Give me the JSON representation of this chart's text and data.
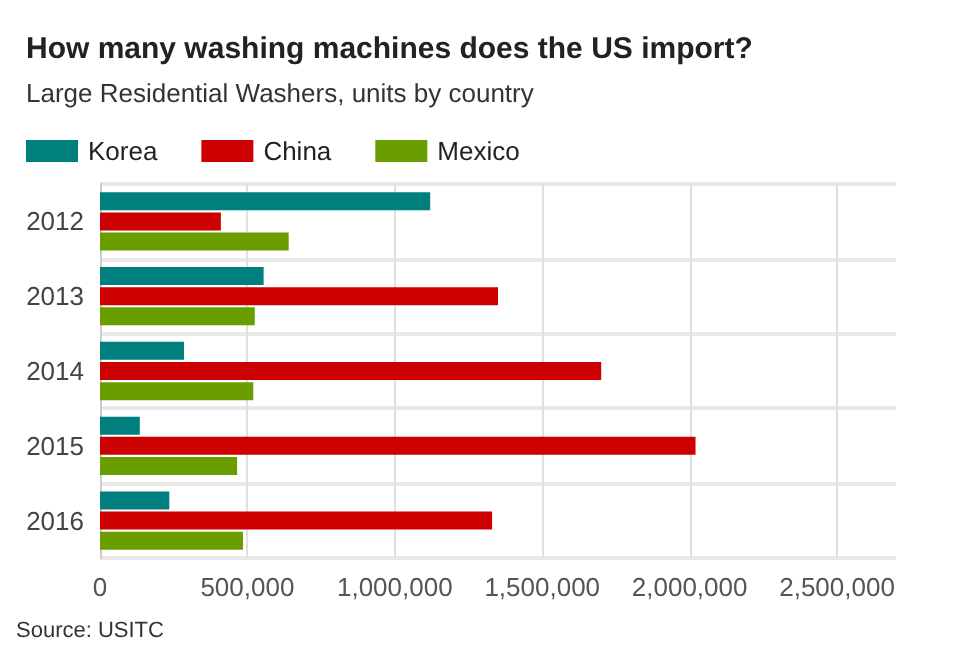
{
  "chart_data": {
    "type": "bar",
    "orientation": "horizontal",
    "title": "How many washing machines does the US import?",
    "subtitle": "Large Residential Washers, units by country",
    "categories": [
      "2012",
      "2013",
      "2014",
      "2015",
      "2016"
    ],
    "series": [
      {
        "name": "Korea",
        "color": "#007f7f",
        "values": [
          1120000,
          555000,
          285000,
          135000,
          235000
        ]
      },
      {
        "name": "China",
        "color": "#cc0000",
        "values": [
          410000,
          1350000,
          1700000,
          2020000,
          1330000
        ]
      },
      {
        "name": "Mexico",
        "color": "#6a9e00",
        "values": [
          640000,
          525000,
          520000,
          465000,
          485000
        ]
      }
    ],
    "xlim": [
      0,
      2700000
    ],
    "xticks": [
      0,
      {
        "value": 500000,
        "label": "500,000"
      },
      {
        "value": 1000000,
        "label": "1,000,000"
      },
      {
        "value": 1500000,
        "label": "1,500,000"
      },
      {
        "value": 2000000,
        "label": "2,000,000"
      },
      {
        "value": 2500000,
        "label": "2,500,000"
      }
    ],
    "grid": true,
    "legend": "top left",
    "annotations": [
      "Source: USITC"
    ]
  }
}
